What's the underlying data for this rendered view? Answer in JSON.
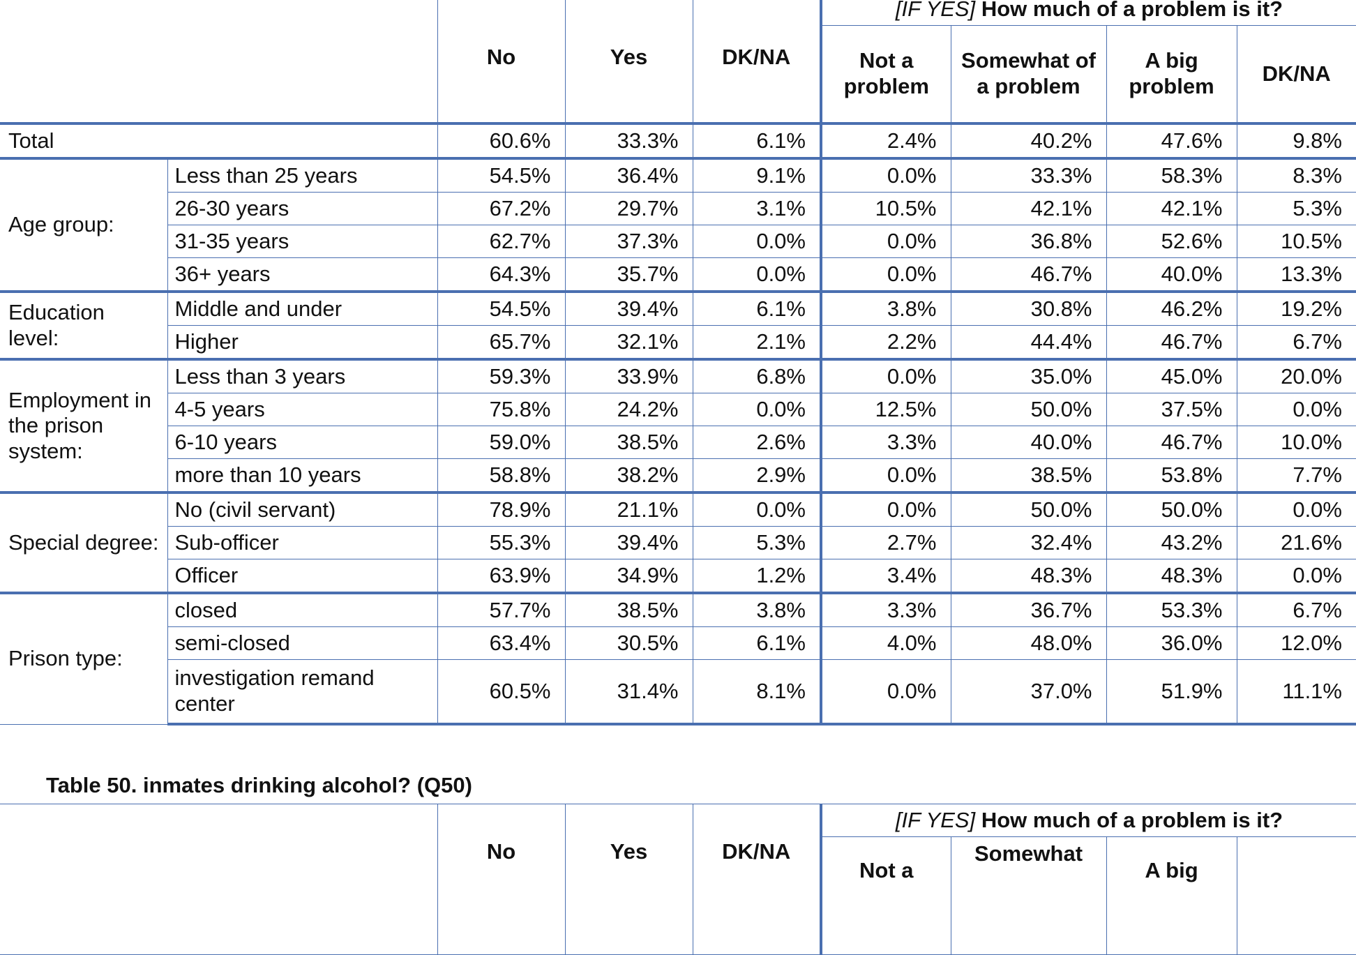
{
  "table49": {
    "question_prefix": "[IF YES]",
    "question_text": "How much of a problem is it?",
    "columns": [
      "No",
      "Yes",
      "DK/NA",
      "Not a problem",
      "Somewhat of a problem",
      "A big problem",
      "DK/NA"
    ],
    "total": {
      "label": "Total",
      "values": [
        "60.6%",
        "33.3%",
        "6.1%",
        "2.4%",
        "40.2%",
        "47.6%",
        "9.8%"
      ]
    },
    "groups": [
      {
        "label": "Age group:",
        "rows": [
          {
            "label": "Less than 25 years",
            "values": [
              "54.5%",
              "36.4%",
              "9.1%",
              "0.0%",
              "33.3%",
              "58.3%",
              "8.3%"
            ]
          },
          {
            "label": "26-30 years",
            "values": [
              "67.2%",
              "29.7%",
              "3.1%",
              "10.5%",
              "42.1%",
              "42.1%",
              "5.3%"
            ]
          },
          {
            "label": "31-35 years",
            "values": [
              "62.7%",
              "37.3%",
              "0.0%",
              "0.0%",
              "36.8%",
              "52.6%",
              "10.5%"
            ]
          },
          {
            "label": "36+ years",
            "values": [
              "64.3%",
              "35.7%",
              "0.0%",
              "0.0%",
              "46.7%",
              "40.0%",
              "13.3%"
            ]
          }
        ]
      },
      {
        "label": "Education level:",
        "rows": [
          {
            "label": "Middle and under",
            "values": [
              "54.5%",
              "39.4%",
              "6.1%",
              "3.8%",
              "30.8%",
              "46.2%",
              "19.2%"
            ]
          },
          {
            "label": "Higher",
            "values": [
              "65.7%",
              "32.1%",
              "2.1%",
              "2.2%",
              "44.4%",
              "46.7%",
              "6.7%"
            ]
          }
        ]
      },
      {
        "label": "Employment in the prison system:",
        "rows": [
          {
            "label": "Less than 3 years",
            "values": [
              "59.3%",
              "33.9%",
              "6.8%",
              "0.0%",
              "35.0%",
              "45.0%",
              "20.0%"
            ]
          },
          {
            "label": "4-5 years",
            "values": [
              "75.8%",
              "24.2%",
              "0.0%",
              "12.5%",
              "50.0%",
              "37.5%",
              "0.0%"
            ]
          },
          {
            "label": "6-10 years",
            "values": [
              "59.0%",
              "38.5%",
              "2.6%",
              "3.3%",
              "40.0%",
              "46.7%",
              "10.0%"
            ]
          },
          {
            "label": "more than 10 years",
            "values": [
              "58.8%",
              "38.2%",
              "2.9%",
              "0.0%",
              "38.5%",
              "53.8%",
              "7.7%"
            ]
          }
        ]
      },
      {
        "label": "Special degree:",
        "rows": [
          {
            "label": "No (civil servant)",
            "values": [
              "78.9%",
              "21.1%",
              "0.0%",
              "0.0%",
              "50.0%",
              "50.0%",
              "0.0%"
            ]
          },
          {
            "label": "Sub-officer",
            "values": [
              "55.3%",
              "39.4%",
              "5.3%",
              "2.7%",
              "32.4%",
              "43.2%",
              "21.6%"
            ]
          },
          {
            "label": "Officer",
            "values": [
              "63.9%",
              "34.9%",
              "1.2%",
              "3.4%",
              "48.3%",
              "48.3%",
              "0.0%"
            ]
          }
        ]
      },
      {
        "label": "Prison type:",
        "rows": [
          {
            "label": "closed",
            "values": [
              "57.7%",
              "38.5%",
              "3.8%",
              "3.3%",
              "36.7%",
              "53.3%",
              "6.7%"
            ]
          },
          {
            "label": "semi-closed",
            "values": [
              "63.4%",
              "30.5%",
              "6.1%",
              "4.0%",
              "48.0%",
              "36.0%",
              "12.0%"
            ]
          },
          {
            "label": "investigation remand center",
            "values": [
              "60.5%",
              "31.4%",
              "8.1%",
              "0.0%",
              "37.0%",
              "51.9%",
              "11.1%"
            ]
          }
        ]
      }
    ]
  },
  "table50": {
    "caption": "Table 50. inmates drinking alcohol? (Q50)",
    "question_prefix": "[IF YES]",
    "question_text": "How much of a problem is it?",
    "columns": [
      "No",
      "Yes",
      "DK/NA",
      "Not a",
      "Somewhat",
      "A big",
      ""
    ]
  },
  "colors": {
    "border": "#4a6fb0",
    "text": "#111111",
    "background": "#ffffff"
  }
}
